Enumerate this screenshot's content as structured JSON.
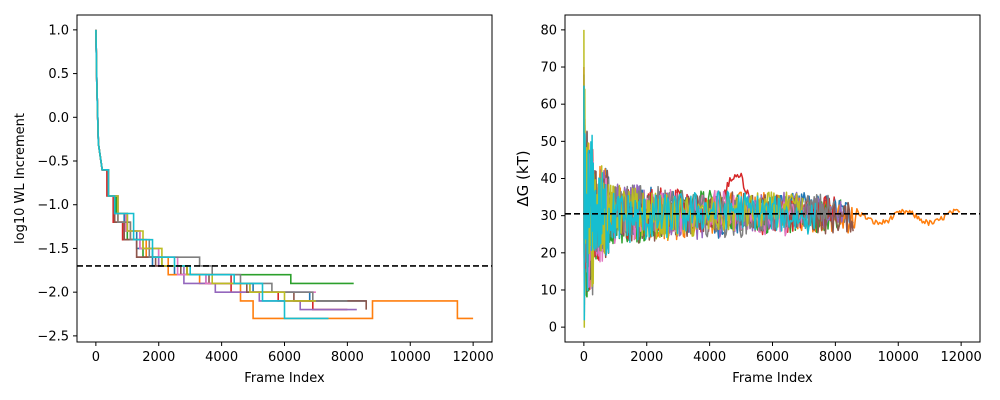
{
  "chart_data": [
    {
      "type": "line",
      "title": "",
      "xlabel": "Frame Index",
      "ylabel": "log10 WL Increment",
      "xlim": [
        -600,
        12600
      ],
      "ylim": [
        -2.57,
        1.17
      ],
      "xticks": [
        0,
        2000,
        4000,
        6000,
        8000,
        10000,
        12000
      ],
      "yticks": [
        -2.5,
        -2.0,
        -1.5,
        -1.0,
        -0.5,
        0.0,
        0.5,
        1.0
      ],
      "ytick_labels": [
        "−2.5",
        "−2.0",
        "−1.5",
        "−1.0",
        "−0.5",
        "0.0",
        "0.5",
        "1.0"
      ],
      "grid": false,
      "reference_line": {
        "y": -1.7,
        "style": "dashed",
        "color": "#000000"
      },
      "series": [
        {
          "color": "#1f77b4",
          "points": [
            [
              0,
              1.0
            ],
            [
              30,
              0.4
            ],
            [
              80,
              -0.3
            ],
            [
              200,
              -0.6
            ],
            [
              400,
              -0.9
            ],
            [
              600,
              -1.1
            ],
            [
              900,
              -1.3
            ],
            [
              1300,
              -1.5
            ],
            [
              1800,
              -1.7
            ],
            [
              2500,
              -1.8
            ],
            [
              3500,
              -1.9
            ],
            [
              5000,
              -2.0
            ],
            [
              6800,
              -2.1
            ],
            [
              8600,
              -2.1
            ]
          ]
        },
        {
          "color": "#ff7f0e",
          "points": [
            [
              0,
              1.0
            ],
            [
              30,
              0.4
            ],
            [
              80,
              -0.3
            ],
            [
              200,
              -0.6
            ],
            [
              400,
              -0.9
            ],
            [
              700,
              -1.2
            ],
            [
              1100,
              -1.4
            ],
            [
              1600,
              -1.6
            ],
            [
              2300,
              -1.8
            ],
            [
              3300,
              -1.9
            ],
            [
              4600,
              -2.1
            ],
            [
              5000,
              -2.3
            ],
            [
              8800,
              -2.1
            ],
            [
              11500,
              -2.3
            ],
            [
              12000,
              -2.3
            ]
          ]
        },
        {
          "color": "#2ca02c",
          "points": [
            [
              0,
              1.0
            ],
            [
              30,
              0.4
            ],
            [
              80,
              -0.3
            ],
            [
              200,
              -0.6
            ],
            [
              400,
              -0.9
            ],
            [
              650,
              -1.1
            ],
            [
              1000,
              -1.4
            ],
            [
              1500,
              -1.6
            ],
            [
              2100,
              -1.7
            ],
            [
              2900,
              -1.8
            ],
            [
              6200,
              -1.9
            ],
            [
              8200,
              -1.9
            ]
          ]
        },
        {
          "color": "#d62728",
          "points": [
            [
              0,
              1.0
            ],
            [
              30,
              0.4
            ],
            [
              80,
              -0.3
            ],
            [
              200,
              -0.6
            ],
            [
              350,
              -0.9
            ],
            [
              550,
              -1.2
            ],
            [
              850,
              -1.4
            ],
            [
              1300,
              -1.6
            ],
            [
              2000,
              -1.7
            ],
            [
              2900,
              -1.8
            ],
            [
              4300,
              -2.0
            ],
            [
              5800,
              -2.1
            ],
            [
              6900,
              -2.2
            ],
            [
              8000,
              -2.2
            ]
          ]
        },
        {
          "color": "#9467bd",
          "points": [
            [
              0,
              1.0
            ],
            [
              30,
              0.4
            ],
            [
              80,
              -0.3
            ],
            [
              200,
              -0.6
            ],
            [
              400,
              -0.9
            ],
            [
              700,
              -1.1
            ],
            [
              1000,
              -1.3
            ],
            [
              1400,
              -1.5
            ],
            [
              2000,
              -1.7
            ],
            [
              2800,
              -1.9
            ],
            [
              3800,
              -2.0
            ],
            [
              5200,
              -2.1
            ],
            [
              6500,
              -2.2
            ],
            [
              8300,
              -2.2
            ]
          ]
        },
        {
          "color": "#8c564b",
          "points": [
            [
              0,
              1.0
            ],
            [
              30,
              0.4
            ],
            [
              80,
              -0.3
            ],
            [
              200,
              -0.6
            ],
            [
              400,
              -0.9
            ],
            [
              600,
              -1.2
            ],
            [
              900,
              -1.4
            ],
            [
              1300,
              -1.6
            ],
            [
              1900,
              -1.7
            ],
            [
              2700,
              -1.8
            ],
            [
              3600,
              -1.9
            ],
            [
              4800,
              -2.0
            ],
            [
              6300,
              -2.1
            ],
            [
              8600,
              -2.2
            ]
          ]
        },
        {
          "color": "#e377c2",
          "points": [
            [
              0,
              1.0
            ],
            [
              30,
              0.4
            ],
            [
              80,
              -0.3
            ],
            [
              200,
              -0.6
            ],
            [
              400,
              -0.9
            ],
            [
              600,
              -1.1
            ],
            [
              950,
              -1.3
            ],
            [
              1400,
              -1.5
            ],
            [
              2000,
              -1.6
            ],
            [
              2600,
              -1.8
            ],
            [
              3500,
              -1.9
            ],
            [
              4900,
              -2.0
            ],
            [
              7000,
              -2.0
            ]
          ]
        },
        {
          "color": "#7f7f7f",
          "points": [
            [
              0,
              1.0
            ],
            [
              30,
              0.4
            ],
            [
              80,
              -0.3
            ],
            [
              200,
              -0.6
            ],
            [
              400,
              -0.9
            ],
            [
              700,
              -1.2
            ],
            [
              1100,
              -1.4
            ],
            [
              1700,
              -1.6
            ],
            [
              3300,
              -1.7
            ],
            [
              3700,
              -1.8
            ],
            [
              4600,
              -1.9
            ],
            [
              5600,
              -2.0
            ],
            [
              6900,
              -2.1
            ],
            [
              8000,
              -2.1
            ]
          ]
        },
        {
          "color": "#bcbd22",
          "points": [
            [
              0,
              1.0
            ],
            [
              30,
              0.4
            ],
            [
              80,
              -0.3
            ],
            [
              200,
              -0.6
            ],
            [
              400,
              -0.9
            ],
            [
              700,
              -1.1
            ],
            [
              1000,
              -1.3
            ],
            [
              1500,
              -1.5
            ],
            [
              2100,
              -1.7
            ],
            [
              2900,
              -1.8
            ],
            [
              3700,
              -1.9
            ],
            [
              4900,
              -2.0
            ],
            [
              6000,
              -2.1
            ],
            [
              7000,
              -2.1
            ]
          ]
        },
        {
          "color": "#17becf",
          "points": [
            [
              0,
              1.0
            ],
            [
              30,
              0.4
            ],
            [
              80,
              -0.3
            ],
            [
              200,
              -0.6
            ],
            [
              400,
              -0.9
            ],
            [
              600,
              -1.1
            ],
            [
              1200,
              -1.4
            ],
            [
              1800,
              -1.6
            ],
            [
              2500,
              -1.7
            ],
            [
              3000,
              -1.8
            ],
            [
              4400,
              -1.9
            ],
            [
              5300,
              -2.1
            ],
            [
              6000,
              -2.3
            ],
            [
              7400,
              -2.3
            ]
          ]
        }
      ]
    },
    {
      "type": "line",
      "title": "",
      "xlabel": "Frame Index",
      "ylabel": "ΔG (kT)",
      "xlim": [
        -600,
        12600
      ],
      "ylim": [
        -4,
        84
      ],
      "xticks": [
        0,
        2000,
        4000,
        6000,
        8000,
        10000,
        12000
      ],
      "yticks": [
        0,
        10,
        20,
        30,
        40,
        50,
        60,
        70,
        80
      ],
      "grid": false,
      "reference_line": {
        "y": 30.5,
        "style": "dashed",
        "color": "#000000"
      },
      "series": [
        {
          "color": "#1f77b4",
          "end": 8600,
          "spike": [
            68,
            4
          ]
        },
        {
          "color": "#ff7f0e",
          "end": 12000,
          "spike": [
            60,
            8
          ]
        },
        {
          "color": "#2ca02c",
          "end": 8200,
          "spike": [
            62,
            10
          ]
        },
        {
          "color": "#d62728",
          "end": 8000,
          "spike": [
            70,
            6
          ],
          "bump": {
            "x0": 4300,
            "x1": 5400,
            "peak": 41
          }
        },
        {
          "color": "#9467bd",
          "end": 8300,
          "spike": [
            58,
            12
          ]
        },
        {
          "color": "#8c564b",
          "end": 8600,
          "spike": [
            55,
            14
          ]
        },
        {
          "color": "#e377c2",
          "end": 7000,
          "spike": [
            52,
            3
          ]
        },
        {
          "color": "#7f7f7f",
          "end": 8000,
          "spike": [
            57,
            11
          ]
        },
        {
          "color": "#bcbd22",
          "end": 7000,
          "spike": [
            80,
            0
          ]
        },
        {
          "color": "#17becf",
          "end": 7400,
          "spike": [
            65,
            2
          ]
        }
      ]
    }
  ]
}
